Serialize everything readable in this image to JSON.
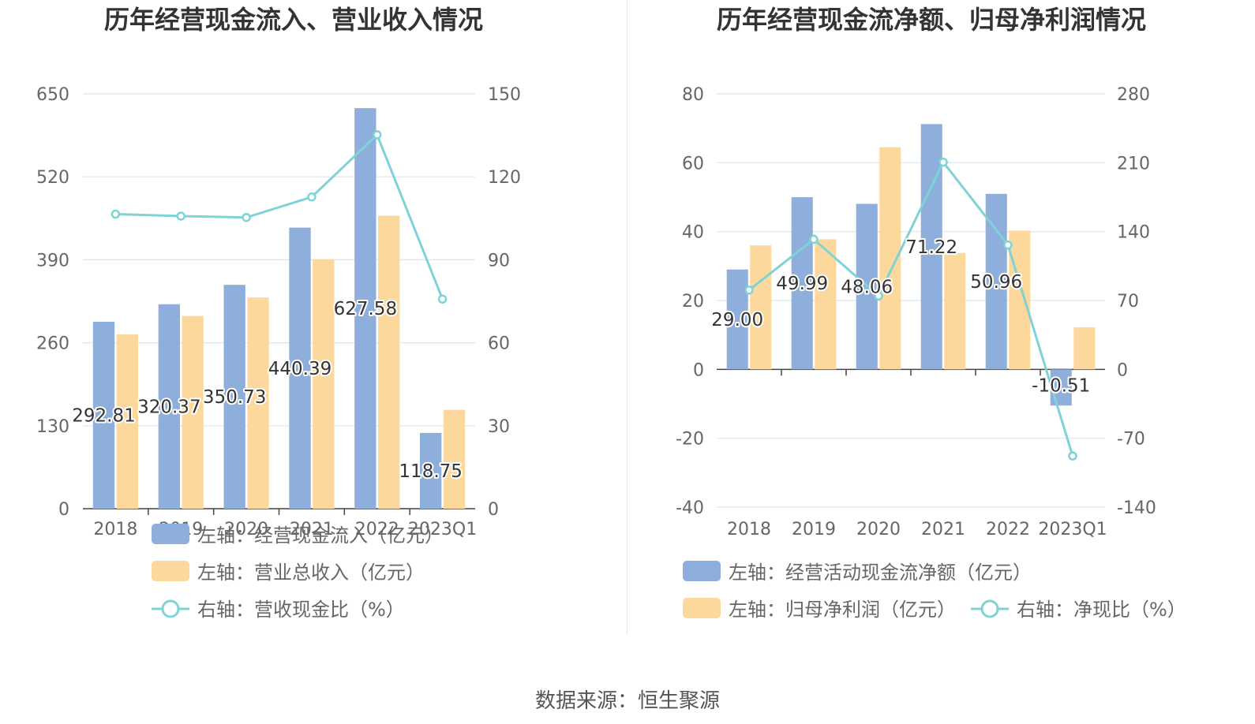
{
  "colors": {
    "bar_blue": "#8eaedc",
    "bar_orange": "#fdd89d",
    "line_teal": "#7fd2d5",
    "axis_text": "#666666",
    "title_text": "#333333",
    "grid": "#dde3ef",
    "axis_line": "#444444",
    "label_text": "#333333"
  },
  "source_text": "数据来源：恒生聚源",
  "chart_data": [
    {
      "type": "bar",
      "title": "历年经营现金流入、营业收入情况",
      "categories": [
        "2018",
        "2019",
        "2020",
        "2021",
        "2022",
        "2023Q1"
      ],
      "ylim_left": [
        0,
        650
      ],
      "yticks_left": [
        0,
        130,
        260,
        390,
        520,
        650
      ],
      "ylim_right": [
        0,
        150
      ],
      "yticks_right": [
        0,
        30,
        60,
        90,
        120,
        150
      ],
      "grid": true,
      "legend_position": "bottom",
      "series": [
        {
          "name": "左轴：经营现金流入（亿元）",
          "kind": "bar",
          "axis": "left",
          "color": "#8eaedc",
          "values": [
            292.81,
            320.37,
            350.73,
            440.39,
            627.58,
            118.75
          ],
          "show_labels": true
        },
        {
          "name": "左轴：营业总收入（亿元）",
          "kind": "bar",
          "axis": "left",
          "color": "#fdd89d",
          "values": [
            273,
            302,
            331,
            391,
            459,
            155
          ],
          "show_labels": false
        },
        {
          "name": "右轴：营收现金比（%）",
          "kind": "line",
          "axis": "right",
          "color": "#7fd2d5",
          "values": [
            106.5,
            105.8,
            105.3,
            112.7,
            135.2,
            75.8
          ],
          "show_labels": false
        }
      ]
    },
    {
      "type": "bar",
      "title": "历年经营现金流净额、归母净利润情况",
      "categories": [
        "2018",
        "2019",
        "2020",
        "2021",
        "2022",
        "2023Q1"
      ],
      "ylim_left": [
        -40,
        80
      ],
      "yticks_left": [
        -40,
        -20,
        0,
        20,
        40,
        60,
        80
      ],
      "ylim_right": [
        -140,
        280
      ],
      "yticks_right": [
        -140,
        -70,
        0,
        70,
        140,
        210,
        280
      ],
      "grid": true,
      "legend_position": "bottom",
      "series": [
        {
          "name": "左轴：经营活动现金流净额（亿元）",
          "kind": "bar",
          "axis": "left",
          "color": "#8eaedc",
          "values": [
            29.0,
            49.99,
            48.06,
            71.22,
            50.96,
            -10.51
          ],
          "show_labels": true
        },
        {
          "name": "左轴：归母净利润（亿元）",
          "kind": "bar",
          "axis": "left",
          "color": "#fdd89d",
          "values": [
            36.0,
            37.8,
            64.5,
            33.8,
            40.3,
            12.2
          ],
          "show_labels": false
        },
        {
          "name": "右轴：净现比（%）",
          "kind": "line",
          "axis": "right",
          "color": "#7fd2d5",
          "values": [
            80.6,
            132.2,
            74.6,
            210.6,
            126.4,
            -88.0
          ],
          "show_labels": false
        }
      ]
    }
  ]
}
